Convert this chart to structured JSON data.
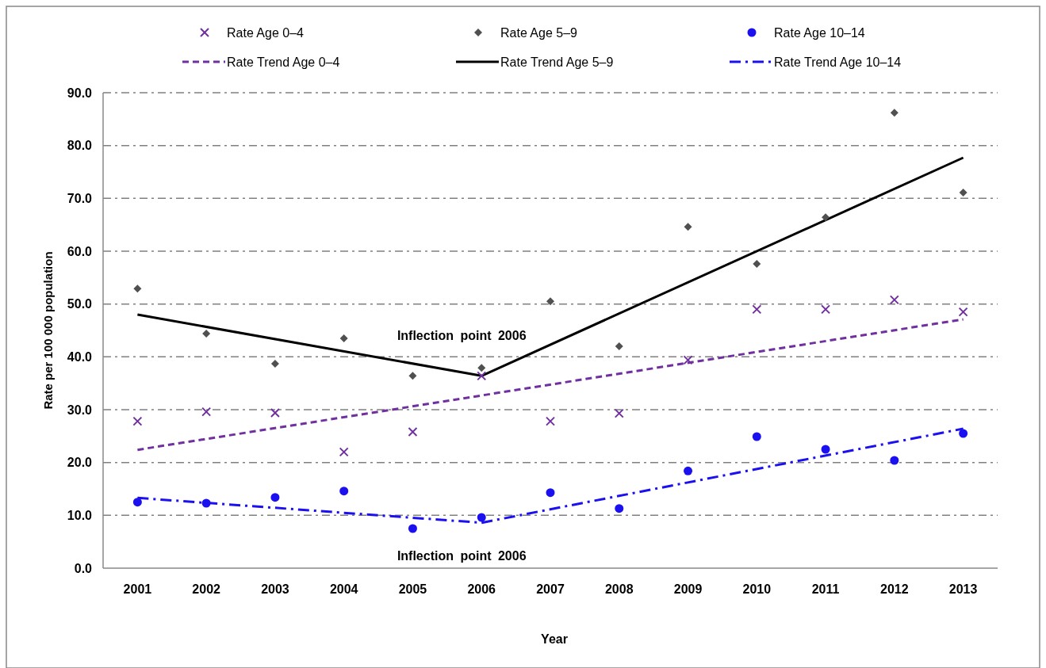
{
  "chart_data": {
    "type": "scatter",
    "xlabel": "Year",
    "ylabel": "Rate per 100 000 population",
    "x": [
      2001,
      2002,
      2003,
      2004,
      2005,
      2006,
      2007,
      2008,
      2009,
      2010,
      2011,
      2012,
      2013
    ],
    "xlim": [
      2000.5,
      2013.5
    ],
    "xticks": [
      2001,
      2002,
      2003,
      2004,
      2005,
      2006,
      2007,
      2008,
      2009,
      2010,
      2011,
      2012,
      2013
    ],
    "series": [
      {
        "name": "Rate Age 0–4",
        "marker": "cross",
        "color": "#7030a0",
        "values": [
          27.8,
          29.6,
          29.4,
          22.0,
          25.8,
          36.4,
          27.8,
          29.3,
          39.4,
          49.0,
          49.0,
          50.8,
          48.5
        ]
      },
      {
        "name": "Rate Age 5–9",
        "marker": "diamond",
        "color": "#505050",
        "values": [
          52.9,
          44.4,
          38.7,
          43.5,
          36.4,
          37.9,
          50.5,
          42.0,
          64.6,
          57.6,
          66.4,
          86.2,
          71.1
        ]
      },
      {
        "name": "Rate Age 10–14",
        "marker": "circle",
        "color": "#1a10f0",
        "values": [
          12.5,
          12.3,
          13.4,
          14.6,
          7.5,
          9.6,
          14.3,
          11.3,
          18.4,
          24.9,
          22.5,
          20.4,
          25.5
        ]
      },
      {
        "name": "Rate Trend Age 0–4",
        "type": "line",
        "line_style": "dashed",
        "color": "#7030a0",
        "x": [
          2001,
          2013
        ],
        "values": [
          22.4,
          47.1
        ]
      },
      {
        "name": "Rate Trend Age 5–9",
        "type": "line",
        "line_style": "solid",
        "color": "#000000",
        "x": [
          2001,
          2006,
          2013
        ],
        "values": [
          48.0,
          36.4,
          77.7
        ]
      },
      {
        "name": "Rate Trend Age 10–14",
        "type": "line",
        "line_style": "dashdot",
        "color": "#1a10f0",
        "x": [
          2001,
          2006,
          2013
        ],
        "values": [
          13.3,
          8.6,
          26.4
        ]
      }
    ],
    "ylim": [
      0,
      90
    ],
    "yticks": [
      {
        "value": 0,
        "label": "0.0"
      },
      {
        "value": 10,
        "label": "10.0"
      },
      {
        "value": 20,
        "label": "20.0"
      },
      {
        "value": 30,
        "label": "30.0"
      },
      {
        "value": 40,
        "label": "40.0"
      },
      {
        "value": 50,
        "label": "50.0"
      },
      {
        "value": 60,
        "label": "60.0"
      },
      {
        "value": 70,
        "label": "70.0"
      },
      {
        "value": 80,
        "label": "80.0"
      },
      {
        "value": 90,
        "label": "90.0"
      }
    ],
    "grid": "y",
    "legend": "top",
    "annotations": [
      {
        "text": "Inflection point 2006",
        "x": 2006,
        "y": 36.4
      },
      {
        "text": "Inflection point 2006",
        "x": 2006,
        "y": 8.6
      }
    ]
  }
}
